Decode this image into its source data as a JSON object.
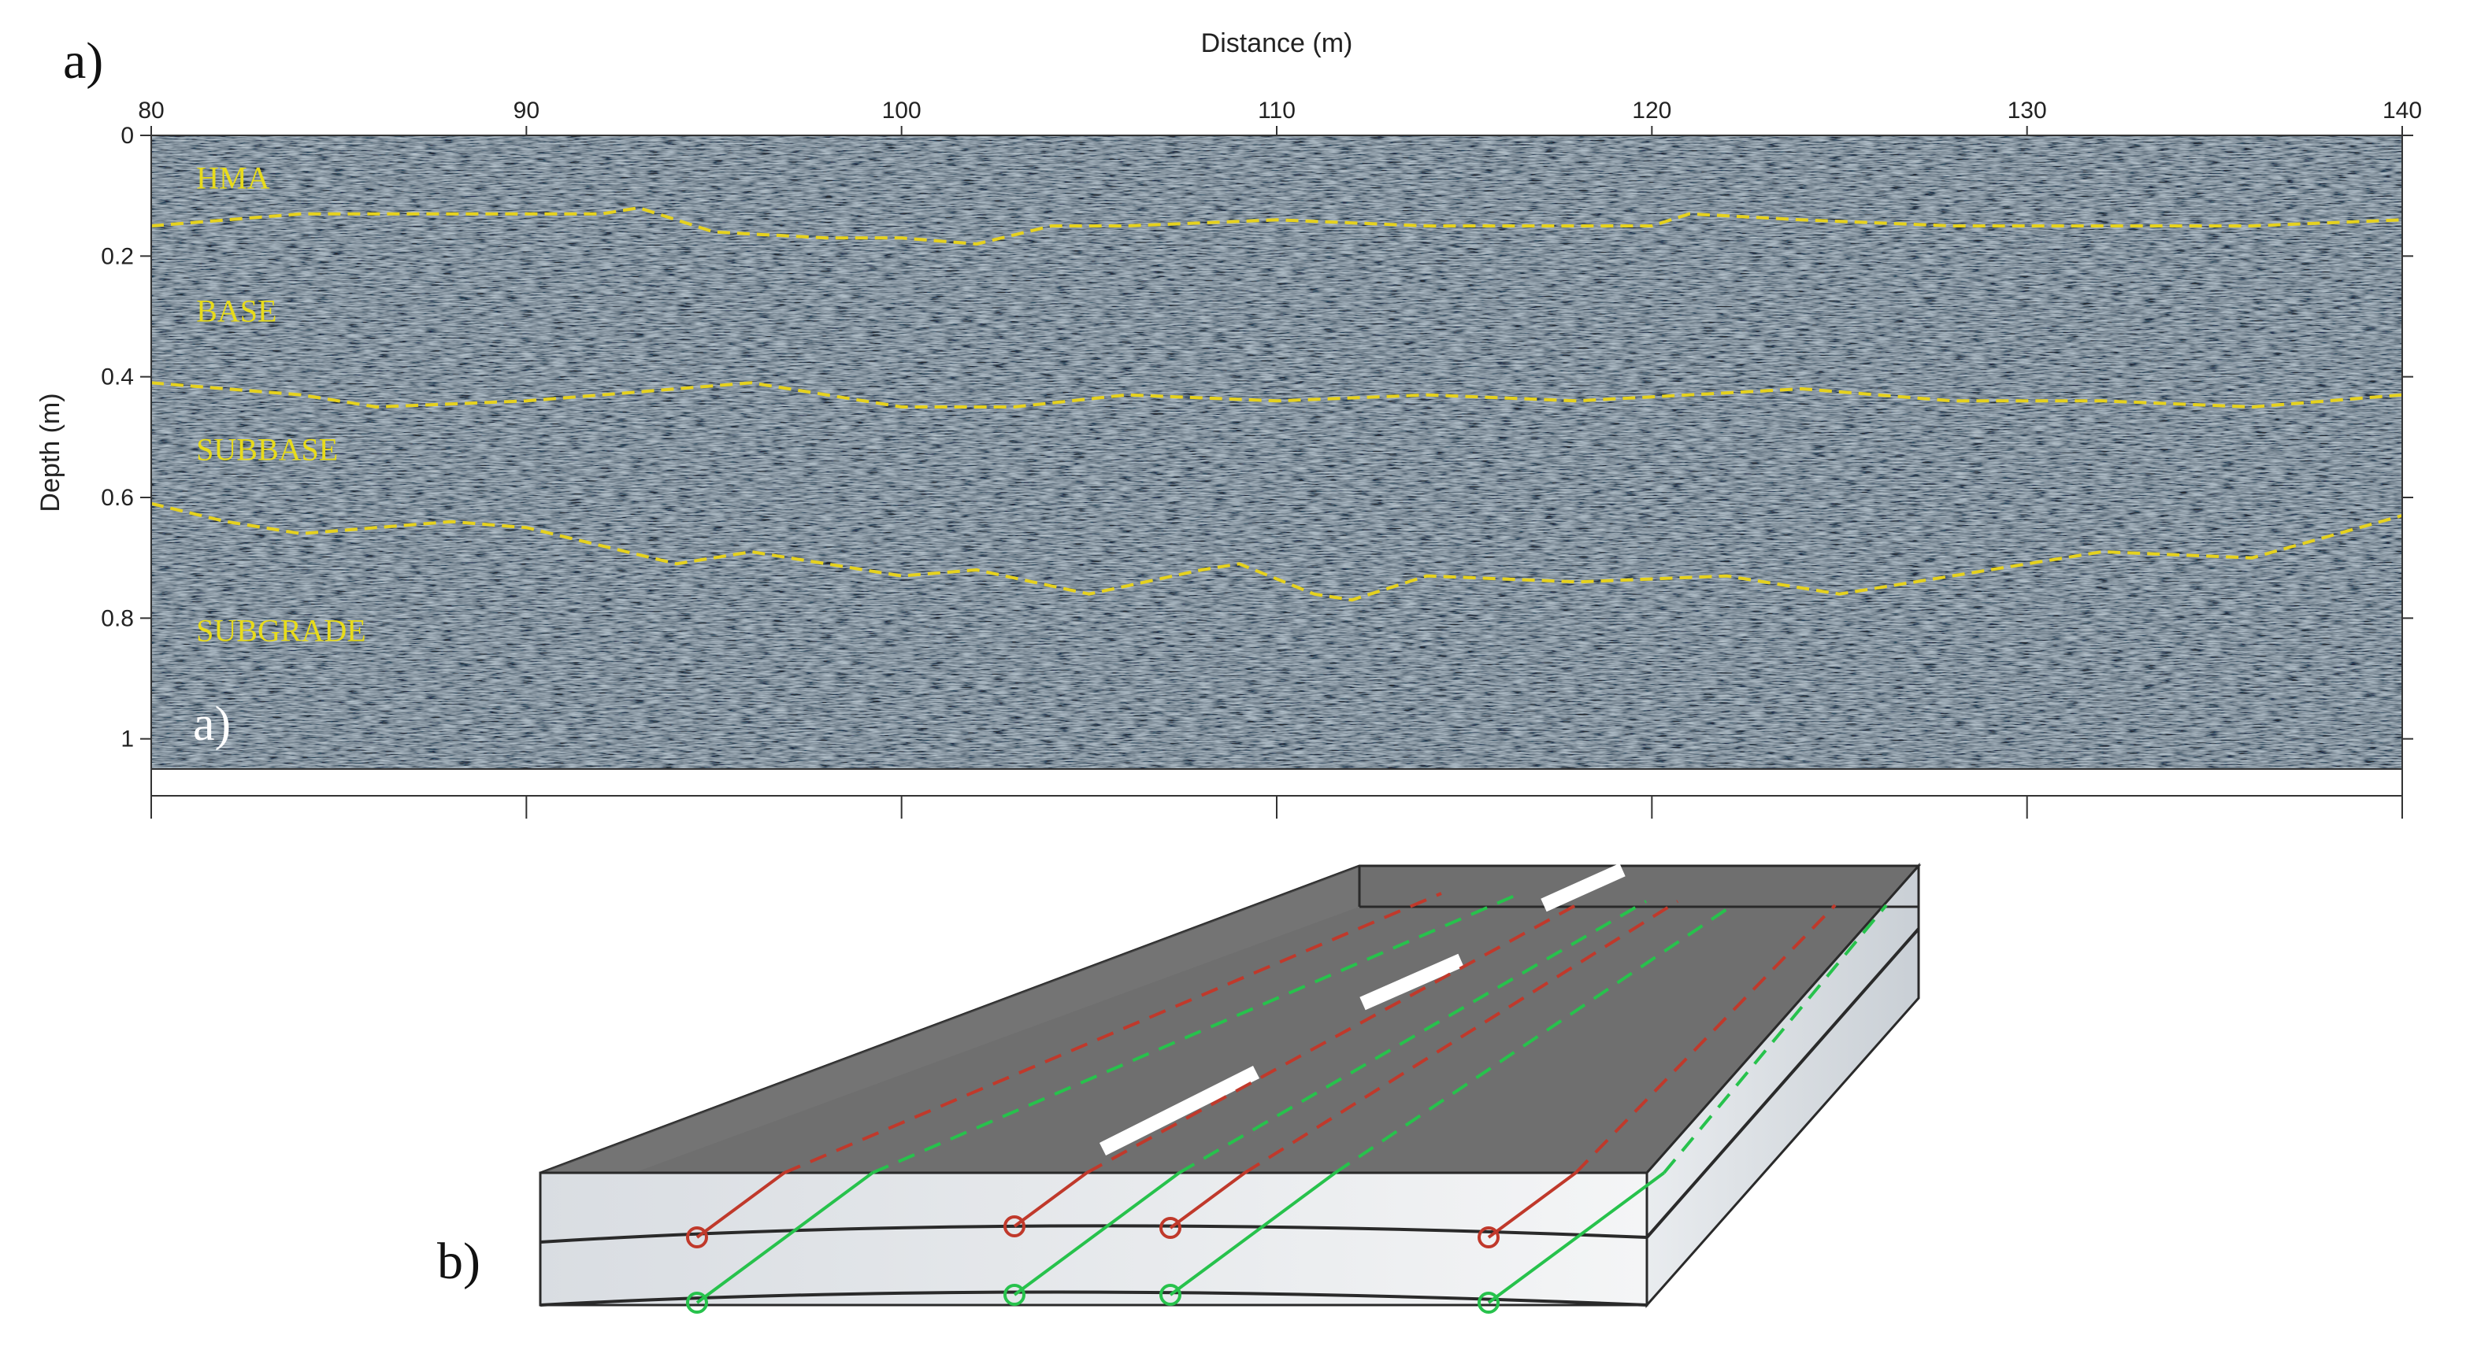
{
  "figure_labels": {
    "a_outer": "a)",
    "a_inner": "a)",
    "b": "b)"
  },
  "colors": {
    "radar_bg": "#5d6a78",
    "interface_line": "#e6d21e",
    "layer_text": "#e8dc1a",
    "red_line": "#c0392b",
    "green_line": "#27c24c",
    "road_top": "#6f6f6f"
  },
  "chart_data": {
    "type": "heatmap",
    "title": "",
    "xlabel": "Distance (m)",
    "ylabel": "Depth (m)",
    "xlim": [
      80,
      140
    ],
    "ylim": [
      0,
      1.05
    ],
    "x_axis_position": "top",
    "y_reversed": true,
    "x_ticks": [
      80,
      90,
      100,
      110,
      120,
      130,
      140
    ],
    "y_ticks": [
      {
        "value": 0,
        "label": "0"
      },
      {
        "value": 0.2,
        "label": "0.2"
      },
      {
        "value": 0.4,
        "label": "0.4"
      },
      {
        "value": 0.6,
        "label": "0.6"
      },
      {
        "value": 0.8,
        "label": "0.8"
      },
      {
        "value": 1,
        "label": "1"
      }
    ],
    "layer_labels": [
      {
        "text": "HMA",
        "x": 81.2,
        "depth": 0.07
      },
      {
        "text": "BASE",
        "x": 81.2,
        "depth": 0.29
      },
      {
        "text": "SUBBASE",
        "x": 81.2,
        "depth": 0.52
      },
      {
        "text": "SUBGRADE",
        "x": 81.2,
        "depth": 0.82
      }
    ],
    "interfaces": [
      {
        "x": [
          80,
          84,
          88,
          92,
          93,
          95,
          98,
          100,
          102,
          104,
          106,
          110,
          114,
          118,
          120,
          121,
          124,
          128,
          132,
          136,
          140
        ],
        "depth": [
          0.15,
          0.13,
          0.13,
          0.13,
          0.12,
          0.16,
          0.17,
          0.17,
          0.18,
          0.15,
          0.15,
          0.14,
          0.15,
          0.15,
          0.15,
          0.13,
          0.14,
          0.15,
          0.15,
          0.15,
          0.14
        ]
      },
      {
        "x": [
          80,
          84,
          86,
          90,
          92,
          96,
          100,
          103,
          106,
          110,
          114,
          118,
          124,
          128,
          132,
          136,
          140
        ],
        "depth": [
          0.41,
          0.43,
          0.45,
          0.44,
          0.43,
          0.41,
          0.45,
          0.45,
          0.43,
          0.44,
          0.43,
          0.44,
          0.42,
          0.44,
          0.44,
          0.45,
          0.43
        ]
      },
      {
        "x": [
          80,
          82,
          84,
          86,
          88,
          90,
          92,
          94,
          96,
          98,
          100,
          102,
          105,
          108,
          109,
          111,
          112,
          114,
          118,
          122,
          125,
          128,
          132,
          136,
          140
        ],
        "depth": [
          0.61,
          0.64,
          0.66,
          0.65,
          0.64,
          0.65,
          0.68,
          0.71,
          0.69,
          0.71,
          0.73,
          0.72,
          0.76,
          0.72,
          0.71,
          0.76,
          0.77,
          0.73,
          0.74,
          0.73,
          0.76,
          0.73,
          0.69,
          0.7,
          0.63
        ]
      }
    ]
  }
}
